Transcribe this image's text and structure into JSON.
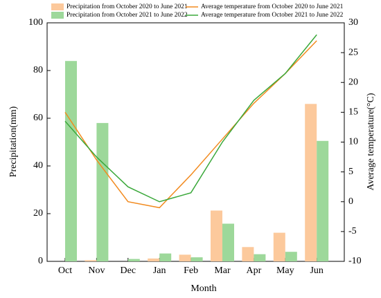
{
  "chart_data": {
    "type": "bar",
    "x_label": "Month",
    "y_label": "Precipitation(mm)",
    "y2_label": "Average temperature(°C)",
    "categories": [
      "Oct",
      "Nov",
      "Dec",
      "Jan",
      "Feb",
      "Mar",
      "Apr",
      "May",
      "Jun"
    ],
    "series": [
      {
        "name": "Precipitation from October 2020 to June 2021",
        "type": "bar",
        "color": "#fcc99c",
        "values": [
          0,
          0.5,
          0,
          1.2,
          2.8,
          21.3,
          6,
          12,
          66
        ]
      },
      {
        "name": "Precipitation from October 2021 to June 2022",
        "type": "bar",
        "color": "#9dd89a",
        "values": [
          84,
          58,
          1,
          3.3,
          1.7,
          15.8,
          3,
          4,
          50.5
        ]
      },
      {
        "name": "Average temperature from October 2020 to June 2021",
        "type": "line",
        "axis": "y2",
        "color": "#f28a1e",
        "values": [
          15,
          7,
          0,
          -1,
          4.5,
          10.5,
          16.5,
          21.5,
          27
        ]
      },
      {
        "name": "Average temperature from October 2021 to June 2022",
        "type": "line",
        "axis": "y2",
        "color": "#3aa83a",
        "values": [
          13.5,
          7.5,
          2.5,
          0,
          1.5,
          10,
          17,
          21.5,
          28
        ]
      }
    ],
    "ylim": [
      0,
      100
    ],
    "yticks": [
      0,
      20,
      40,
      60,
      80,
      100
    ],
    "y2lim": [
      -10,
      30
    ],
    "y2ticks": [
      -10,
      -5,
      0,
      5,
      10,
      15,
      20,
      25,
      30
    ]
  }
}
